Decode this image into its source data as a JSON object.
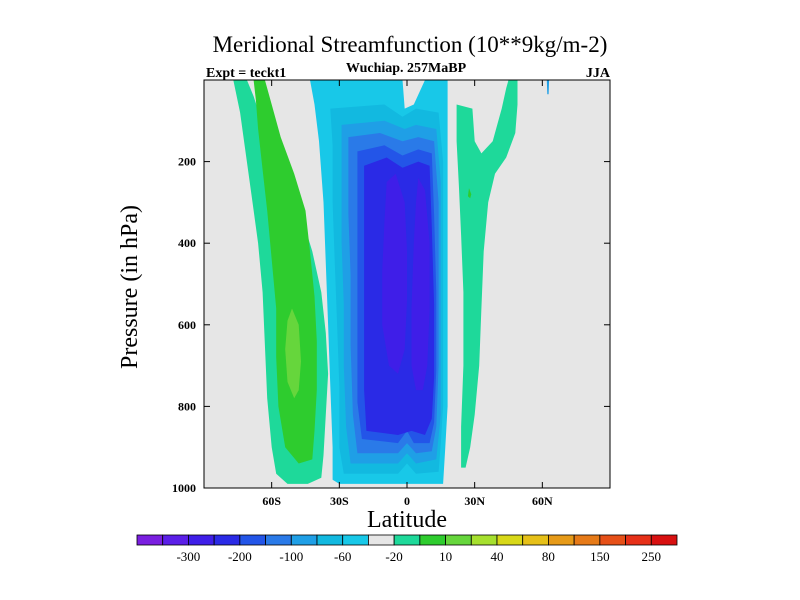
{
  "chart_data": {
    "type": "contour",
    "title": "Meridional Streamfunction (10**9kg/m-2)",
    "subtitle": "Wuchiap. 257MaBP",
    "left_label": "Expt = teckt1",
    "right_label": "JJA",
    "xlabel": "Latitude",
    "ylabel": "Pressure (in hPa)",
    "xlim": [
      -90,
      90
    ],
    "ylim": [
      1000,
      0
    ],
    "x_ticks": [
      {
        "value": -60,
        "label": "60S"
      },
      {
        "value": -30,
        "label": "30S"
      },
      {
        "value": 0,
        "label": "0"
      },
      {
        "value": 30,
        "label": "30N"
      },
      {
        "value": 60,
        "label": "60N"
      }
    ],
    "y_ticks": [
      {
        "value": 200,
        "label": "200"
      },
      {
        "value": 400,
        "label": "400"
      },
      {
        "value": 600,
        "label": "600"
      },
      {
        "value": 800,
        "label": "800"
      },
      {
        "value": 1000,
        "label": "1000"
      }
    ],
    "background_color": "#e6e6e6",
    "colorbar": {
      "colors": [
        "#7a1fe0",
        "#5b1fe8",
        "#3f1ee8",
        "#2a2ae6",
        "#2355e8",
        "#2a7ae8",
        "#1f9fe6",
        "#12b9e0",
        "#18c8e8",
        "#e6e6e6",
        "#1ed99a",
        "#2ecc2e",
        "#66d63c",
        "#a6e02e",
        "#d8d818",
        "#e6c018",
        "#e69a18",
        "#e67a18",
        "#e65018",
        "#e63018",
        "#d81010"
      ],
      "labels": [
        {
          "after_box": 1,
          "text": "-300"
        },
        {
          "after_box": 3,
          "text": "-200"
        },
        {
          "after_box": 5,
          "text": "-100"
        },
        {
          "after_box": 7,
          "text": "-60"
        },
        {
          "after_box": 9,
          "text": "-20"
        },
        {
          "after_box": 11,
          "text": "10"
        },
        {
          "after_box": 13,
          "text": "40"
        },
        {
          "after_box": 15,
          "text": "80"
        },
        {
          "after_box": 17,
          "text": "150"
        },
        {
          "after_box": 19,
          "text": "250"
        }
      ]
    },
    "regions": [
      {
        "name": "sh-outer-positive",
        "color": "#1ed99a",
        "points": [
          [
            -77,
            0
          ],
          [
            -71,
            0
          ],
          [
            -68,
            40
          ],
          [
            -65,
            90
          ],
          [
            -62,
            140
          ],
          [
            -58,
            200
          ],
          [
            -52,
            260
          ],
          [
            -47,
            330
          ],
          [
            -42,
            420
          ],
          [
            -38,
            520
          ],
          [
            -36,
            620
          ],
          [
            -35,
            720
          ],
          [
            -36,
            820
          ],
          [
            -37,
            920
          ],
          [
            -38,
            975
          ],
          [
            -44,
            990
          ],
          [
            -53,
            990
          ],
          [
            -58,
            965
          ],
          [
            -60,
            900
          ],
          [
            -62,
            780
          ],
          [
            -63,
            650
          ],
          [
            -64,
            520
          ],
          [
            -66,
            400
          ],
          [
            -69,
            280
          ],
          [
            -72,
            160
          ],
          [
            -74,
            80
          ]
        ]
      },
      {
        "name": "sh-positive-core",
        "color": "#2ecc2e",
        "points": [
          [
            -68,
            0
          ],
          [
            -63,
            0
          ],
          [
            -60,
            60
          ],
          [
            -56,
            140
          ],
          [
            -50,
            230
          ],
          [
            -45,
            320
          ],
          [
            -43,
            420
          ],
          [
            -41,
            530
          ],
          [
            -40,
            640
          ],
          [
            -40,
            760
          ],
          [
            -41,
            860
          ],
          [
            -42,
            930
          ],
          [
            -48,
            940
          ],
          [
            -54,
            900
          ],
          [
            -57,
            800
          ],
          [
            -58,
            680
          ],
          [
            -58,
            560
          ],
          [
            -60,
            440
          ],
          [
            -62,
            320
          ],
          [
            -64,
            220
          ],
          [
            -66,
            120
          ],
          [
            -67,
            50
          ]
        ]
      },
      {
        "name": "sh-positive-max",
        "color": "#66d63c",
        "points": [
          [
            -51,
            560
          ],
          [
            -48,
            600
          ],
          [
            -47,
            690
          ],
          [
            -48,
            760
          ],
          [
            -50,
            780
          ],
          [
            -53,
            740
          ],
          [
            -54,
            660
          ],
          [
            -53,
            590
          ]
        ]
      },
      {
        "name": "equator-negative-1",
        "color": "#18c8e8",
        "points": [
          [
            -43,
            0
          ],
          [
            -2,
            0
          ],
          [
            -1,
            70
          ],
          [
            3,
            60
          ],
          [
            8,
            0
          ],
          [
            18,
            0
          ],
          [
            18,
            200
          ],
          [
            18,
            400
          ],
          [
            18,
            600
          ],
          [
            18,
            800
          ],
          [
            17,
            900
          ],
          [
            16,
            990
          ],
          [
            -30,
            990
          ],
          [
            -33,
            980
          ],
          [
            -33,
            900
          ],
          [
            -34,
            750
          ],
          [
            -35,
            600
          ],
          [
            -36,
            450
          ],
          [
            -37,
            300
          ],
          [
            -39,
            150
          ],
          [
            -41,
            60
          ]
        ]
      },
      {
        "name": "equator-negative-2",
        "color": "#12b9e0",
        "points": [
          [
            -34,
            70
          ],
          [
            -10,
            60
          ],
          [
            -2,
            90
          ],
          [
            4,
            70
          ],
          [
            14,
            80
          ],
          [
            16,
            200
          ],
          [
            16,
            400
          ],
          [
            16,
            600
          ],
          [
            16,
            800
          ],
          [
            15,
            890
          ],
          [
            14,
            960
          ],
          [
            4,
            965
          ],
          [
            0,
            940
          ],
          [
            -4,
            965
          ],
          [
            -28,
            965
          ],
          [
            -30,
            900
          ],
          [
            -30,
            750
          ],
          [
            -31,
            600
          ],
          [
            -32,
            450
          ],
          [
            -33,
            300
          ],
          [
            -33,
            160
          ]
        ]
      },
      {
        "name": "equator-negative-3",
        "color": "#1f9fe6",
        "points": [
          [
            -29,
            110
          ],
          [
            -10,
            100
          ],
          [
            -1,
            120
          ],
          [
            4,
            110
          ],
          [
            13,
            120
          ],
          [
            15,
            250
          ],
          [
            15,
            450
          ],
          [
            15,
            650
          ],
          [
            15,
            820
          ],
          [
            13,
            930
          ],
          [
            4,
            940
          ],
          [
            0,
            915
          ],
          [
            -4,
            940
          ],
          [
            -25,
            940
          ],
          [
            -27,
            850
          ],
          [
            -28,
            700
          ],
          [
            -28,
            550
          ],
          [
            -29,
            400
          ],
          [
            -29,
            250
          ]
        ]
      },
      {
        "name": "equator-negative-4",
        "color": "#2a7ae8",
        "points": [
          [
            -26,
            140
          ],
          [
            -12,
            130
          ],
          [
            -2,
            150
          ],
          [
            5,
            140
          ],
          [
            12,
            150
          ],
          [
            14,
            300
          ],
          [
            14,
            500
          ],
          [
            14,
            700
          ],
          [
            13,
            850
          ],
          [
            11,
            910
          ],
          [
            4,
            915
          ],
          [
            0,
            890
          ],
          [
            -4,
            915
          ],
          [
            -22,
            915
          ],
          [
            -24,
            820
          ],
          [
            -25,
            650
          ],
          [
            -25,
            480
          ],
          [
            -26,
            330
          ]
        ]
      },
      {
        "name": "equator-negative-5",
        "color": "#2355e8",
        "points": [
          [
            -22,
            175
          ],
          [
            -10,
            160
          ],
          [
            -2,
            185
          ],
          [
            5,
            170
          ],
          [
            11,
            180
          ],
          [
            12,
            330
          ],
          [
            13,
            520
          ],
          [
            13,
            710
          ],
          [
            12,
            840
          ],
          [
            10,
            890
          ],
          [
            3,
            890
          ],
          [
            0,
            860
          ],
          [
            -4,
            890
          ],
          [
            -20,
            880
          ],
          [
            -22,
            790
          ],
          [
            -22,
            620
          ],
          [
            -22,
            460
          ],
          [
            -22,
            300
          ]
        ]
      },
      {
        "name": "equator-negative-6",
        "color": "#2a2ae6",
        "points": [
          [
            -19,
            210
          ],
          [
            -9,
            190
          ],
          [
            -2,
            215
          ],
          [
            5,
            200
          ],
          [
            10,
            210
          ],
          [
            11,
            360
          ],
          [
            12,
            550
          ],
          [
            12,
            730
          ],
          [
            11,
            830
          ],
          [
            8,
            870
          ],
          [
            2,
            860
          ],
          [
            -4,
            870
          ],
          [
            -18,
            860
          ],
          [
            -19,
            760
          ],
          [
            -19,
            600
          ],
          [
            -19,
            450
          ],
          [
            -19,
            320
          ]
        ]
      },
      {
        "name": "equator-negative-7",
        "color": "#3f1ee8",
        "points": [
          [
            -9,
            250
          ],
          [
            -5,
            230
          ],
          [
            -1,
            300
          ],
          [
            0,
            420
          ],
          [
            0,
            540
          ],
          [
            -1,
            660
          ],
          [
            -4,
            720
          ],
          [
            -8,
            700
          ],
          [
            -11,
            600
          ],
          [
            -11,
            470
          ],
          [
            -10,
            350
          ]
        ]
      },
      {
        "name": "equator-negative-8",
        "color": "#3f1ee8",
        "points": [
          [
            5,
            240
          ],
          [
            8,
            270
          ],
          [
            10,
            400
          ],
          [
            10,
            560
          ],
          [
            9,
            700
          ],
          [
            7,
            760
          ],
          [
            4,
            760
          ],
          [
            2,
            700
          ],
          [
            2,
            560
          ],
          [
            3,
            400
          ],
          [
            4,
            300
          ]
        ]
      },
      {
        "name": "nh-positive-outer",
        "color": "#1ed99a",
        "points": [
          [
            22,
            60
          ],
          [
            29,
            70
          ],
          [
            30,
            150
          ],
          [
            33,
            180
          ],
          [
            38,
            150
          ],
          [
            42,
            70
          ],
          [
            44,
            20
          ],
          [
            45,
            0
          ],
          [
            49,
            0
          ],
          [
            49,
            60
          ],
          [
            48,
            130
          ],
          [
            44,
            190
          ],
          [
            39,
            230
          ],
          [
            36,
            300
          ],
          [
            34,
            420
          ],
          [
            33,
            560
          ],
          [
            32,
            700
          ],
          [
            30,
            820
          ],
          [
            28,
            900
          ],
          [
            26,
            950
          ],
          [
            24,
            950
          ],
          [
            24,
            850
          ],
          [
            25,
            700
          ],
          [
            25,
            520
          ],
          [
            24,
            380
          ],
          [
            23,
            260
          ],
          [
            22,
            150
          ]
        ]
      },
      {
        "name": "nh-positive-small",
        "color": "#2ecc2e",
        "points": [
          [
            27.5,
            265
          ],
          [
            28.5,
            280
          ],
          [
            28,
            290
          ],
          [
            27,
            285
          ]
        ]
      },
      {
        "name": "nh-high-lat-sliver",
        "color": "#1f9fe6",
        "points": [
          [
            62,
            0
          ],
          [
            63,
            0
          ],
          [
            62.8,
            35
          ],
          [
            62.2,
            35
          ]
        ]
      }
    ]
  }
}
